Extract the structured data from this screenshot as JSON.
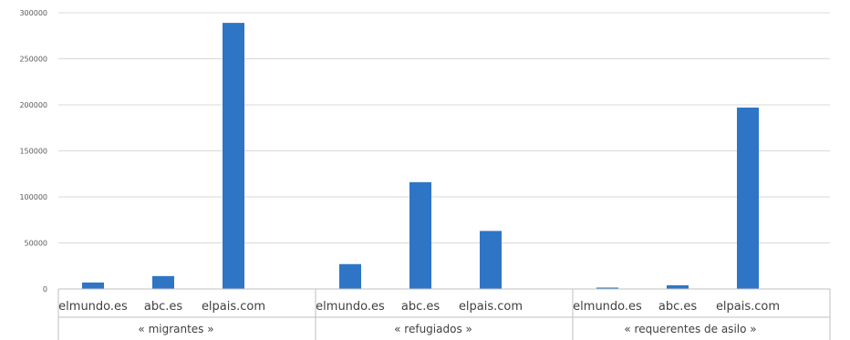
{
  "chart_data": {
    "type": "bar",
    "title": "",
    "xlabel": "",
    "ylabel": "",
    "ylim": [
      0,
      300000
    ],
    "yticks": [
      0,
      50000,
      100000,
      150000,
      200000,
      250000,
      300000
    ],
    "grid": true,
    "legend": "none",
    "bar_color": "#2e75c6",
    "groups": [
      {
        "label": "« migrantes »",
        "categories": [
          "elmundo.es",
          "abc.es",
          "elpais.com"
        ],
        "values": [
          7000,
          14000,
          289000
        ]
      },
      {
        "label": "« refugiados »",
        "categories": [
          "elmundo.es",
          "abc.es",
          "elpais.com"
        ],
        "values": [
          27000,
          116000,
          63000
        ]
      },
      {
        "label": "« requerentes de asilo »",
        "categories": [
          "elmundo.es",
          "abc.es",
          "elpais.com"
        ],
        "values": [
          1500,
          4000,
          197000
        ]
      }
    ]
  }
}
